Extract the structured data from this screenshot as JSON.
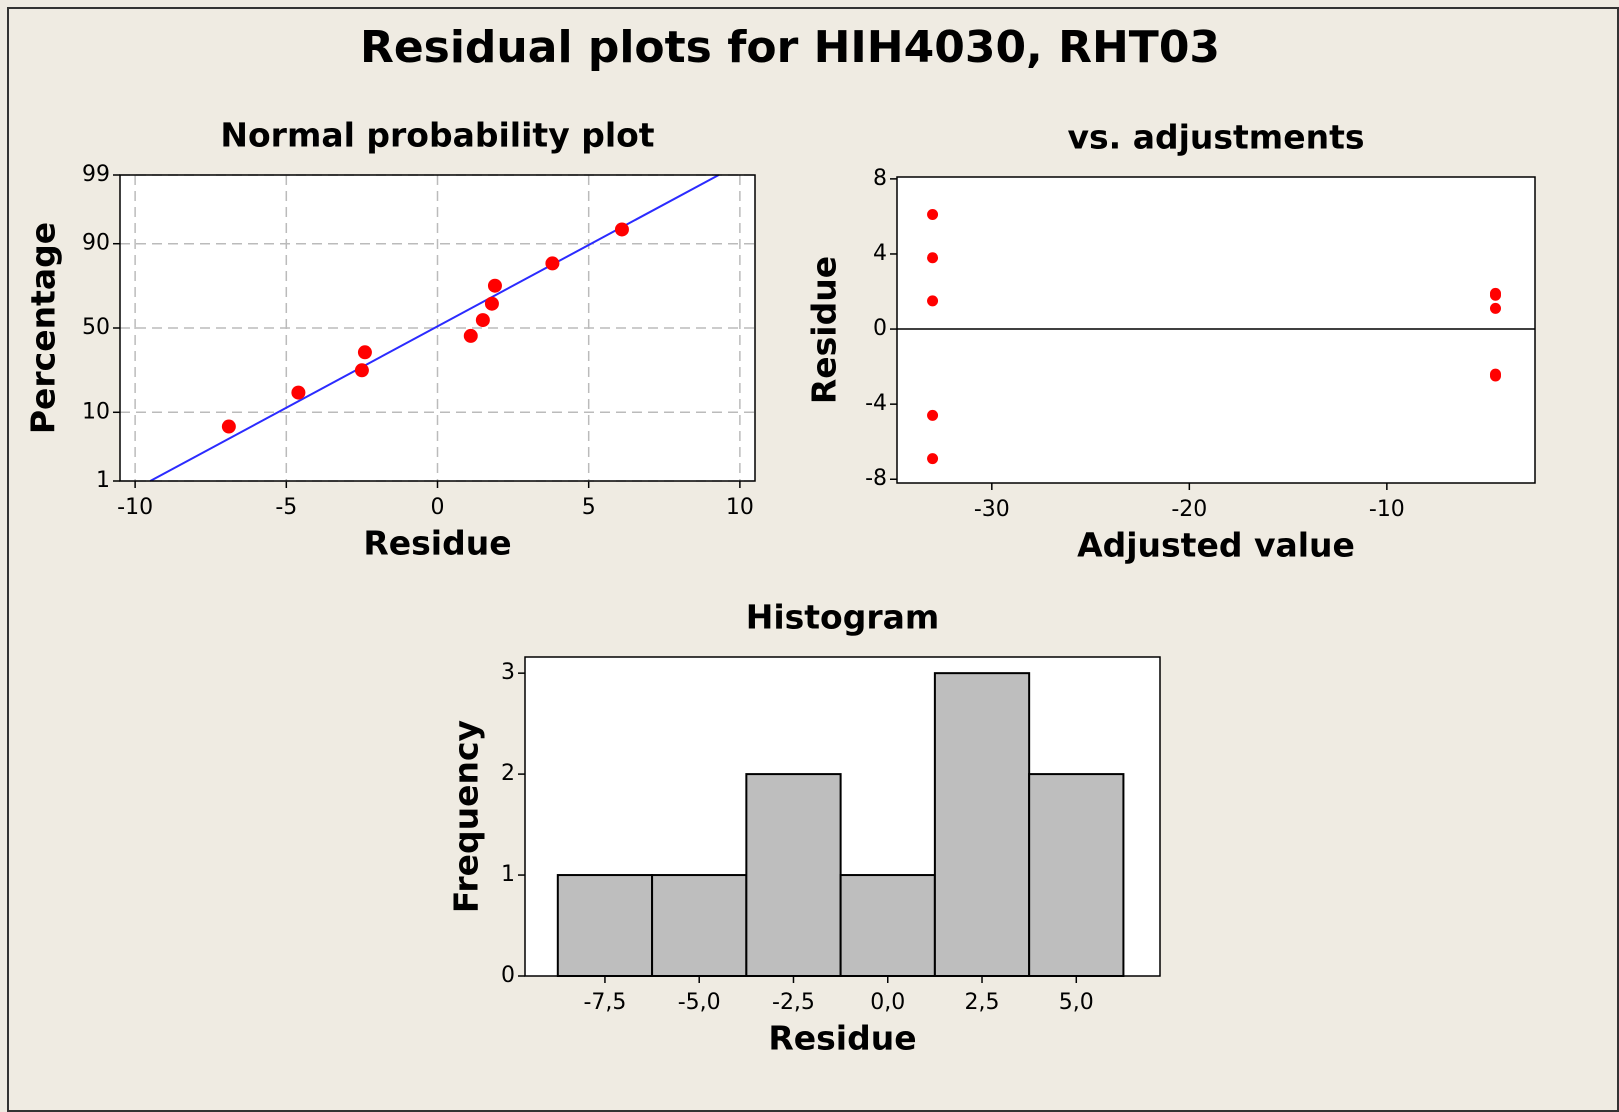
{
  "title": "Residual plots for HIH4030, RHT03",
  "chart_data": [
    {
      "type": "scatter",
      "title": "Normal probability plot",
      "x_label": "Residue",
      "y_label": "Percentage",
      "x": [
        -6.9,
        -4.6,
        -2.5,
        -2.4,
        1.1,
        1.5,
        1.8,
        1.9,
        3.8,
        6.1
      ],
      "values": [
        6.7,
        16.3,
        26,
        35.6,
        45.2,
        54.8,
        64.4,
        74,
        83.7,
        93.3
      ],
      "color": "#ff0000",
      "yscale": "probability",
      "fit_line": {
        "x": [
          -9.5,
          9.3
        ],
        "values": [
          1,
          99
        ],
        "color": "#2b2bff"
      },
      "xlim": [
        -10.5,
        10.5
      ],
      "xticks": [
        -10,
        -5,
        0,
        5,
        10
      ],
      "ylim": [
        1,
        99
      ],
      "yticks": [
        1,
        10,
        50,
        90,
        99
      ],
      "grid": true
    },
    {
      "type": "scatter",
      "title": "vs. adjustments",
      "x_label": "Adjusted value",
      "y_label": "Residue",
      "x": [
        -33,
        -33,
        -33,
        -33,
        -33,
        -4.5,
        -4.5,
        -4.5,
        -4.5,
        -4.5
      ],
      "values": [
        6.1,
        3.8,
        1.5,
        -4.6,
        -6.9,
        1.9,
        1.8,
        1.1,
        -2.4,
        -2.5
      ],
      "color": "#ff0000",
      "reference_line": 0,
      "xlim": [
        -34.8,
        -2.5
      ],
      "xticks": [
        -30,
        -20,
        -10
      ],
      "ylim": [
        -8.2,
        8.1
      ],
      "yticks": [
        -8,
        -4,
        0,
        4,
        8
      ],
      "grid": false
    },
    {
      "type": "histogram",
      "title": "Histogram",
      "x_label": "Residue",
      "y_label": "Frequency",
      "bins": [
        -8.75,
        -6.25,
        -3.75,
        -1.25,
        1.25,
        3.75,
        6.25
      ],
      "values": [
        1,
        1,
        2,
        1,
        3,
        2
      ],
      "color": "#bebebe",
      "xlim": [
        -9.62,
        7.22
      ],
      "xticks": [
        {
          "value": -7.5,
          "label": "-7,5"
        },
        {
          "value": -5,
          "label": "-5,0"
        },
        {
          "value": -2.5,
          "label": "-2,5"
        },
        {
          "value": 0,
          "label": "0,0"
        },
        {
          "value": 2.5,
          "label": "2,5"
        },
        {
          "value": 5,
          "label": "5,0"
        }
      ],
      "ylim": [
        0,
        3.16
      ],
      "yticks": [
        0,
        1,
        2,
        3
      ],
      "grid": false
    }
  ]
}
